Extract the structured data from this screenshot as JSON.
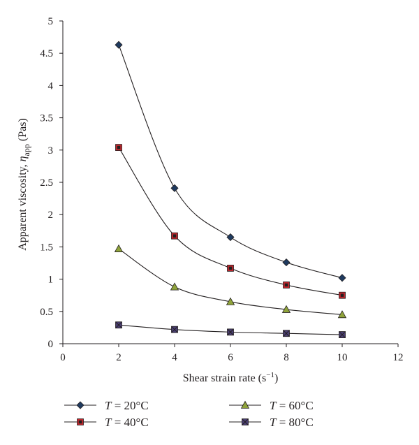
{
  "chart_data": {
    "type": "line",
    "title": "",
    "xlabel": "Shear strain rate (s",
    "xlabel_sup": "−1",
    "xlabel_suffix": ")",
    "ylabel": "Apparent viscosity, ",
    "ylabel_symbol": "η",
    "ylabel_sub": "app",
    "ylabel_unit": "(Pas)",
    "xlim": [
      0,
      12
    ],
    "ylim": [
      0,
      5
    ],
    "xticks": [
      0,
      2,
      4,
      6,
      8,
      10,
      12
    ],
    "yticks": [
      "0",
      "0.5",
      "1",
      "1.5",
      "2",
      "2.5",
      "3",
      "3.5",
      "4",
      "4.5",
      "5"
    ],
    "grid": false,
    "legend_position": "bottom",
    "x": [
      2,
      4,
      6,
      8,
      10
    ],
    "series": [
      {
        "name_var": "T",
        "name_rest": " = 20°C",
        "marker": "diamond",
        "color": "#1f3a5f",
        "values": [
          4.63,
          2.41,
          1.65,
          1.26,
          1.02
        ]
      },
      {
        "name_var": "T",
        "name_rest": " = 40°C",
        "marker": "square",
        "color": "#c0272d",
        "values": [
          3.04,
          1.67,
          1.17,
          0.91,
          0.75
        ]
      },
      {
        "name_var": "T",
        "name_rest": " = 60°C",
        "marker": "triangle",
        "color": "#8fa33a",
        "values": [
          1.47,
          0.88,
          0.65,
          0.53,
          0.45
        ]
      },
      {
        "name_var": "T",
        "name_rest": " = 80°C",
        "marker": "square-x",
        "color": "#4a3f73",
        "values": [
          0.29,
          0.22,
          0.18,
          0.16,
          0.14
        ]
      }
    ]
  }
}
